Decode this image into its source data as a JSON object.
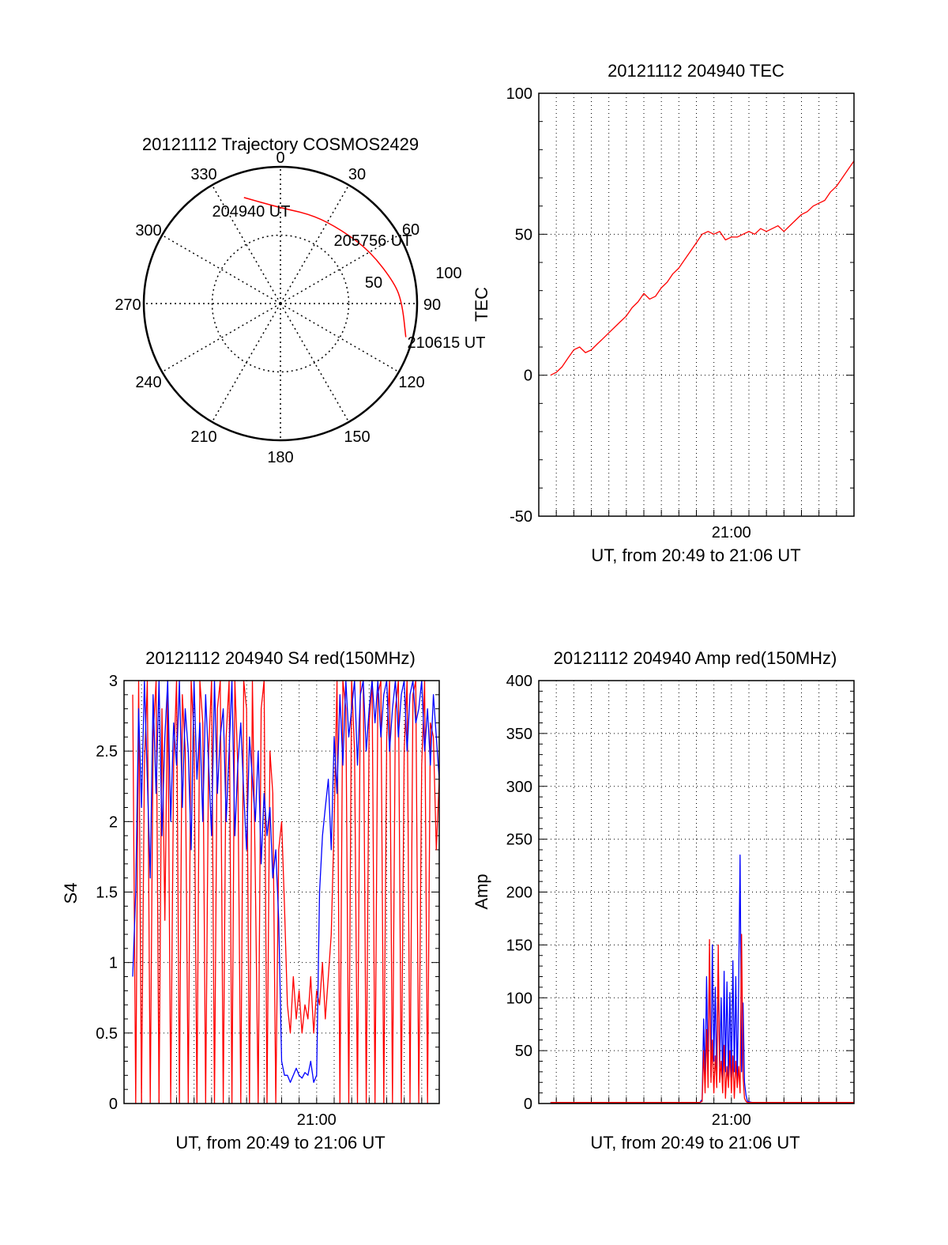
{
  "colors": {
    "primary": "#ff0000",
    "secondary": "#0000ff",
    "axis": "#000000",
    "grid": "#000000"
  },
  "chart_data": [
    {
      "id": "trajectory",
      "type": "polar",
      "title": "20121112 Trajectory COSMOS2429",
      "azimuth_labels": [
        "0",
        "30",
        "60",
        "90",
        "120",
        "150",
        "180",
        "210",
        "240",
        "270",
        "300",
        "330"
      ],
      "radius_labels": [
        "50",
        "100"
      ],
      "rlim": [
        0,
        100
      ],
      "grid": true,
      "track": {
        "color": "#ff0000",
        "points": [
          {
            "az": 341,
            "r": 82,
            "label": "204940 UT"
          },
          {
            "az": 0,
            "r": 70
          },
          {
            "az": 20,
            "r": 69
          },
          {
            "az": 40,
            "r": 70,
            "label": "205756 UT"
          },
          {
            "az": 60,
            "r": 76
          },
          {
            "az": 80,
            "r": 85
          },
          {
            "az": 90,
            "r": 89
          },
          {
            "az": 105,
            "r": 95,
            "label": "210615 UT"
          }
        ]
      }
    },
    {
      "id": "tec",
      "type": "line",
      "title": "20121112 204940 TEC",
      "ylabel": "TEC",
      "xlabel": "UT, from 20:49 to 21:06 UT",
      "xtick_labels": [
        "21:00"
      ],
      "xlim": [
        20.8167,
        21.1167
      ],
      "ylim": [
        -50,
        100
      ],
      "yticks": [
        -50,
        0,
        50,
        100
      ],
      "grid": true,
      "series": [
        {
          "color": "#ff0000",
          "x": [
            20.8278,
            20.8333,
            20.8389,
            20.8444,
            20.85,
            20.8556,
            20.8611,
            20.8667,
            20.8722,
            20.8778,
            20.8833,
            20.8889,
            20.8944,
            20.9,
            20.9056,
            20.9111,
            20.9167,
            20.9222,
            20.9278,
            20.9333,
            20.9389,
            20.9444,
            20.95,
            20.9556,
            20.9611,
            20.9667,
            20.9722,
            20.9778,
            20.9833,
            20.9889,
            20.9944,
            21.0,
            21.0056,
            21.0111,
            21.0167,
            21.0222,
            21.0278,
            21.0333,
            21.0389,
            21.0444,
            21.05,
            21.0556,
            21.0611,
            21.0667,
            21.0722,
            21.0778,
            21.0833,
            21.0889,
            21.0944,
            21.1,
            21.1056,
            21.1111,
            21.1167
          ],
          "y": [
            0,
            1,
            3,
            6,
            9,
            10,
            8,
            9,
            11,
            13,
            15,
            17,
            19,
            21,
            24,
            26,
            29,
            27,
            28,
            31,
            33,
            36,
            38,
            41,
            44,
            47,
            50,
            51,
            50,
            51,
            48,
            49,
            49,
            50,
            51,
            50,
            52,
            51,
            52,
            53,
            51,
            53,
            55,
            57,
            58,
            60,
            61,
            62,
            65,
            67,
            70,
            73,
            76
          ]
        }
      ]
    },
    {
      "id": "s4",
      "type": "line",
      "title": "20121112 204940 S4 red(150MHz)",
      "ylabel": "S4",
      "xlabel": "UT, from 20:49 to 21:06 UT",
      "xtick_labels": [
        "21:00"
      ],
      "xlim": [
        20.8167,
        21.1167
      ],
      "ylim": [
        0,
        3
      ],
      "yticks_labels": [
        "0",
        "0.5",
        "1",
        "1.5",
        "2",
        "2.5",
        "3"
      ],
      "yticks": [
        0,
        0.5,
        1,
        1.5,
        2,
        2.5,
        3
      ],
      "grid": true,
      "series": [
        {
          "color": "#ff0000",
          "x": [
            20.825,
            20.8278,
            20.8306,
            20.8333,
            20.8361,
            20.8389,
            20.8417,
            20.8444,
            20.8472,
            20.85,
            20.8528,
            20.8556,
            20.8583,
            20.8611,
            20.8639,
            20.8667,
            20.8694,
            20.8722,
            20.875,
            20.8778,
            20.8806,
            20.8833,
            20.8861,
            20.8889,
            20.8917,
            20.8944,
            20.8972,
            20.9,
            20.9028,
            20.9056,
            20.9083,
            20.9111,
            20.9139,
            20.9167,
            20.9194,
            20.9222,
            20.925,
            20.9278,
            20.9306,
            20.9333,
            20.9361,
            20.9389,
            20.9417,
            20.9444,
            20.9472,
            20.95,
            20.9528,
            20.9556,
            20.9583,
            20.9611,
            20.9639,
            20.9667,
            20.9694,
            20.9722,
            20.975,
            20.9778,
            20.9806,
            20.9833,
            20.9861,
            20.9889,
            20.9917,
            20.9944,
            20.9972,
            21.0,
            21.0028,
            21.0056,
            21.0083,
            21.0111,
            21.0139,
            21.0167,
            21.0194,
            21.0222,
            21.025,
            21.0278,
            21.0306,
            21.0333,
            21.0361,
            21.0389,
            21.0417,
            21.0444,
            21.0472,
            21.05,
            21.0528,
            21.0556,
            21.0583,
            21.0611,
            21.0639,
            21.0667,
            21.0694,
            21.0722,
            21.075,
            21.0778,
            21.0806,
            21.0833,
            21.0861,
            21.0889,
            21.0917,
            21.0944,
            21.0972,
            21.1,
            21.1028,
            21.1056,
            21.1083,
            21.1111,
            21.1139,
            21.1167
          ],
          "y": [
            2.9,
            0.0,
            3.0,
            0.0,
            2.4,
            3.0,
            0.0,
            2.6,
            3.0,
            0.0,
            2.8,
            1.3,
            3.0,
            0.0,
            2.4,
            3.0,
            0.0,
            2.9,
            2.5,
            0.0,
            3.0,
            2.6,
            0.0,
            3.0,
            2.7,
            0.0,
            2.5,
            3.0,
            0.0,
            2.8,
            3.0,
            0.0,
            2.6,
            3.0,
            0.0,
            3.0,
            2.4,
            0.0,
            3.0,
            2.8,
            0.0,
            3.0,
            1.6,
            0.0,
            2.8,
            3.0,
            0.0,
            2.5,
            2.2,
            0.0,
            1.8,
            2.0,
            1.4,
            0.7,
            0.5,
            0.9,
            0.6,
            0.8,
            0.5,
            0.7,
            0.6,
            0.9,
            0.5,
            0.8,
            0.7,
            1.0,
            0.6,
            0.9,
            1.2,
            2.0,
            3.0,
            0.0,
            3.0,
            2.8,
            0.0,
            3.0,
            2.5,
            0.0,
            3.0,
            3.0,
            0.0,
            2.7,
            3.0,
            0.0,
            2.9,
            3.0,
            0.0,
            2.6,
            3.0,
            0.0,
            2.8,
            3.0,
            0.0,
            2.5,
            3.0,
            0.0,
            2.9,
            3.0,
            0.0,
            2.4,
            3.0,
            0.0,
            2.7,
            2.6,
            1.8,
            2.3
          ]
        },
        {
          "color": "#0000ff",
          "x": [
            20.825,
            20.8278,
            20.8306,
            20.8333,
            20.8361,
            20.8389,
            20.8417,
            20.8444,
            20.8472,
            20.85,
            20.8528,
            20.8556,
            20.8583,
            20.8611,
            20.8639,
            20.8667,
            20.8694,
            20.8722,
            20.875,
            20.8778,
            20.8806,
            20.8833,
            20.8861,
            20.8889,
            20.8917,
            20.8944,
            20.8972,
            20.9,
            20.9028,
            20.9056,
            20.9083,
            20.9111,
            20.9139,
            20.9167,
            20.9194,
            20.9222,
            20.925,
            20.9278,
            20.9306,
            20.9333,
            20.9361,
            20.9389,
            20.9417,
            20.9444,
            20.9472,
            20.95,
            20.9528,
            20.9556,
            20.9583,
            20.9611,
            20.9639,
            20.9667,
            20.9694,
            20.9722,
            20.975,
            20.9778,
            20.9806,
            20.9833,
            20.9861,
            20.9889,
            20.9917,
            20.9944,
            20.9972,
            21.0,
            21.0028,
            21.0056,
            21.0083,
            21.0111,
            21.0139,
            21.0167,
            21.0194,
            21.0222,
            21.025,
            21.0278,
            21.0306,
            21.0333,
            21.0361,
            21.0389,
            21.0417,
            21.0444,
            21.0472,
            21.05,
            21.0528,
            21.0556,
            21.0583,
            21.0611,
            21.0639,
            21.0667,
            21.0694,
            21.0722,
            21.075,
            21.0778,
            21.0806,
            21.0833,
            21.0861,
            21.0889,
            21.0917,
            21.0944,
            21.0972,
            21.1,
            21.1028,
            21.1056,
            21.1083,
            21.1111,
            21.1139,
            21.1167
          ],
          "y": [
            0.9,
            1.5,
            2.8,
            2.1,
            3.0,
            2.3,
            1.6,
            2.9,
            2.2,
            3.0,
            1.9,
            2.6,
            3.0,
            2.0,
            2.7,
            2.4,
            3.0,
            2.1,
            2.8,
            2.5,
            1.8,
            3.0,
            2.3,
            2.7,
            2.0,
            2.9,
            2.4,
            1.9,
            3.0,
            2.2,
            2.6,
            2.8,
            2.0,
            2.5,
            3.0,
            1.9,
            2.4,
            2.7,
            2.2,
            1.8,
            2.6,
            2.3,
            2.0,
            2.5,
            1.7,
            2.2,
            1.9,
            2.1,
            1.6,
            1.8,
            1.3,
            0.3,
            0.2,
            0.2,
            0.15,
            0.2,
            0.25,
            0.2,
            0.18,
            0.22,
            0.2,
            0.3,
            0.15,
            0.2,
            1.5,
            1.9,
            2.1,
            2.3,
            1.8,
            2.6,
            2.2,
            2.9,
            2.4,
            3.0,
            2.6,
            2.8,
            3.0,
            2.4,
            2.9,
            3.0,
            2.5,
            2.8,
            3.0,
            2.7,
            3.0,
            2.6,
            2.9,
            3.0,
            2.5,
            2.8,
            3.0,
            2.6,
            2.9,
            3.0,
            2.5,
            2.9,
            3.0,
            2.7,
            2.8,
            3.0,
            2.5,
            2.8,
            2.4,
            2.9,
            2.6,
            2.3
          ]
        }
      ]
    },
    {
      "id": "amp",
      "type": "line",
      "title": "20121112 204940 Amp red(150MHz)",
      "ylabel": "Amp",
      "xlabel": "UT, from 20:49 to 21:06 UT",
      "xtick_labels": [
        "21:00"
      ],
      "xlim": [
        20.8167,
        21.1167
      ],
      "ylim": [
        0,
        400
      ],
      "yticks": [
        0,
        50,
        100,
        150,
        200,
        250,
        300,
        350,
        400
      ],
      "grid": true,
      "series": [
        {
          "color": "#0000ff",
          "x": [
            20.8278,
            20.9,
            20.97,
            20.9722,
            20.9736,
            20.975,
            20.9764,
            20.9778,
            20.9792,
            20.9806,
            20.9819,
            20.9833,
            20.9847,
            20.9861,
            20.9875,
            20.9889,
            20.9903,
            20.9917,
            20.9931,
            20.9944,
            20.9958,
            20.9972,
            20.9986,
            21.0,
            21.0014,
            21.0028,
            21.0042,
            21.0056,
            21.0069,
            21.0083,
            21.0097,
            21.0111,
            21.0125,
            21.0139,
            21.0153,
            21.02,
            21.1167
          ],
          "y": [
            1,
            1,
            1,
            4,
            80,
            20,
            120,
            30,
            140,
            25,
            150,
            40,
            110,
            20,
            130,
            35,
            100,
            15,
            125,
            30,
            115,
            20,
            105,
            25,
            135,
            30,
            120,
            20,
            110,
            235,
            30,
            95,
            20,
            8,
            2,
            1,
            1
          ]
        },
        {
          "color": "#ff0000",
          "x": [
            20.8278,
            20.9,
            20.97,
            20.9722,
            20.9736,
            20.975,
            20.9764,
            20.9778,
            20.9792,
            20.9806,
            20.9819,
            20.9833,
            20.9847,
            20.9861,
            20.9875,
            20.9889,
            20.9903,
            20.9917,
            20.9931,
            20.9944,
            20.9958,
            20.9972,
            20.9986,
            21.0,
            21.0014,
            21.0028,
            21.0042,
            21.0056,
            21.0069,
            21.0083,
            21.0097,
            21.0111,
            21.0125,
            21.0139,
            21.0153,
            21.02,
            21.1167
          ],
          "y": [
            1,
            1,
            1,
            2,
            50,
            10,
            70,
            15,
            155,
            20,
            60,
            10,
            45,
            15,
            150,
            20,
            40,
            10,
            55,
            5,
            35,
            15,
            50,
            10,
            45,
            5,
            40,
            15,
            35,
            10,
            160,
            25,
            5,
            2,
            1,
            1,
            1
          ]
        }
      ]
    }
  ]
}
